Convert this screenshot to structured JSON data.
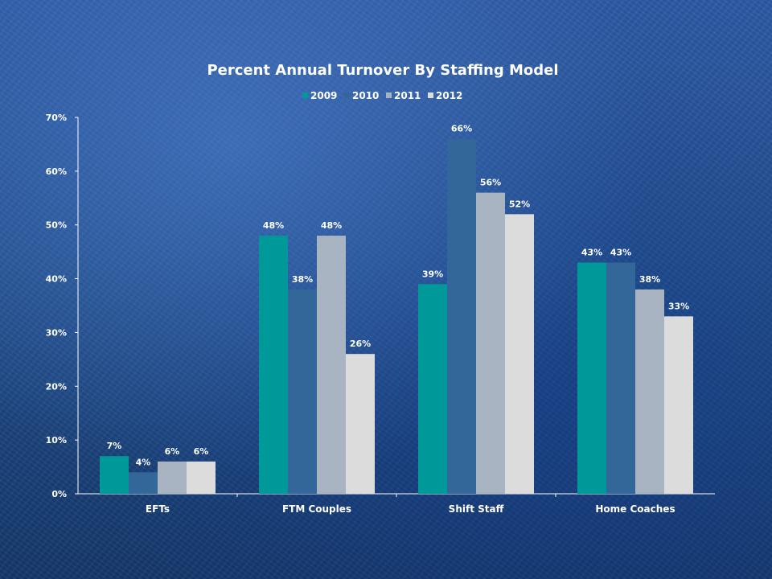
{
  "chart_data": {
    "type": "bar",
    "title": "Percent Annual Turnover By Staffing Model",
    "xlabel": "",
    "ylabel": "",
    "categories": [
      "EFTs",
      "FTM Couples",
      "Shift Staff",
      "Home Coaches"
    ],
    "series": [
      {
        "name": "2009",
        "color": "#009999",
        "values": [
          7,
          48,
          39,
          43
        ],
        "labels": [
          "7%",
          "48%",
          "39%",
          "43%"
        ]
      },
      {
        "name": "2010",
        "color": "#336699",
        "values": [
          4,
          38,
          66,
          43
        ],
        "labels": [
          "4%",
          "38%",
          "66%",
          "43%"
        ]
      },
      {
        "name": "2011",
        "color": "#a9b4c2",
        "values": [
          6,
          48,
          56,
          38
        ],
        "labels": [
          "6%",
          "48%",
          "56%",
          "38%"
        ]
      },
      {
        "name": "2012",
        "color": "#dcdcdc",
        "values": [
          6,
          26,
          52,
          33
        ],
        "labels": [
          "6%",
          "26%",
          "52%",
          "33%"
        ]
      }
    ],
    "ylim": [
      0,
      70
    ],
    "yticks": [
      "0%",
      "10%",
      "20%",
      "30%",
      "40%",
      "50%",
      "60%",
      "70%"
    ],
    "legend": "top-center",
    "grid": false
  }
}
